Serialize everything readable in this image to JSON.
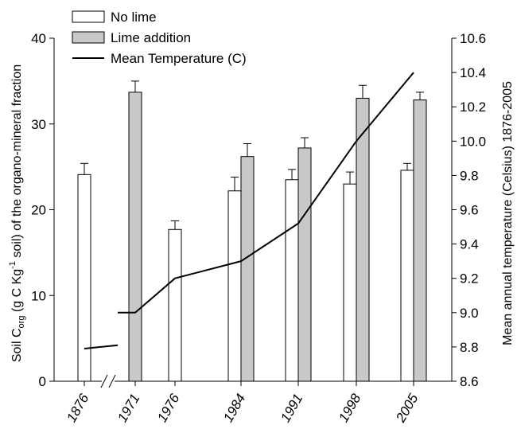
{
  "chart_data": {
    "type": "bar",
    "categories": [
      "1876",
      "1971",
      "1976",
      "1984",
      "1991",
      "1998",
      "2005"
    ],
    "series": [
      {
        "name": "No lime",
        "values": [
          24.1,
          null,
          17.7,
          22.2,
          23.5,
          23.0,
          24.6
        ],
        "errors": [
          1.3,
          null,
          1.0,
          1.6,
          1.2,
          1.4,
          0.8
        ],
        "color": "#ffffff"
      },
      {
        "name": "Lime addition",
        "values": [
          null,
          33.7,
          null,
          26.2,
          27.2,
          33.0,
          32.8
        ],
        "errors": [
          null,
          1.3,
          null,
          1.5,
          1.2,
          1.5,
          0.9
        ],
        "color": "#c8c8c8"
      }
    ],
    "temperature": {
      "name": "Mean Temperature (C)",
      "segments": [
        [
          [
            "1876",
            8.79
          ],
          [
            "1876–1971 break",
            8.81
          ]
        ],
        [
          [
            "1876–1971 break",
            9.0
          ],
          [
            "1971",
            9.0
          ],
          [
            "1976",
            9.2
          ],
          [
            "1984",
            9.3
          ],
          [
            "1991",
            9.52
          ],
          [
            "1998",
            10.0
          ],
          [
            "2005",
            10.4
          ]
        ]
      ]
    },
    "ylabel_left": {
      "pre": "Soil C",
      "sub": "org",
      "mid": " (g C Kg",
      "sup": "-1",
      "post": " soil) of the organo-mineral fraction"
    },
    "ylabel_right": "Mean annual temperature (Celsius) 1876-2005",
    "ylim_left": [
      0,
      40
    ],
    "yticks_left": [
      "0",
      "10",
      "20",
      "30",
      "40"
    ],
    "ylim_right": [
      8.6,
      10.6
    ],
    "yticks_right": [
      "8.6",
      "8.8",
      "9.0",
      "9.2",
      "9.4",
      "9.6",
      "9.8",
      "10.0",
      "10.2",
      "10.4",
      "10.6"
    ],
    "legend": [
      "No lime",
      "Lime addition",
      "Mean Temperature (C)"
    ],
    "legend_position": "top-left",
    "grid": false
  }
}
